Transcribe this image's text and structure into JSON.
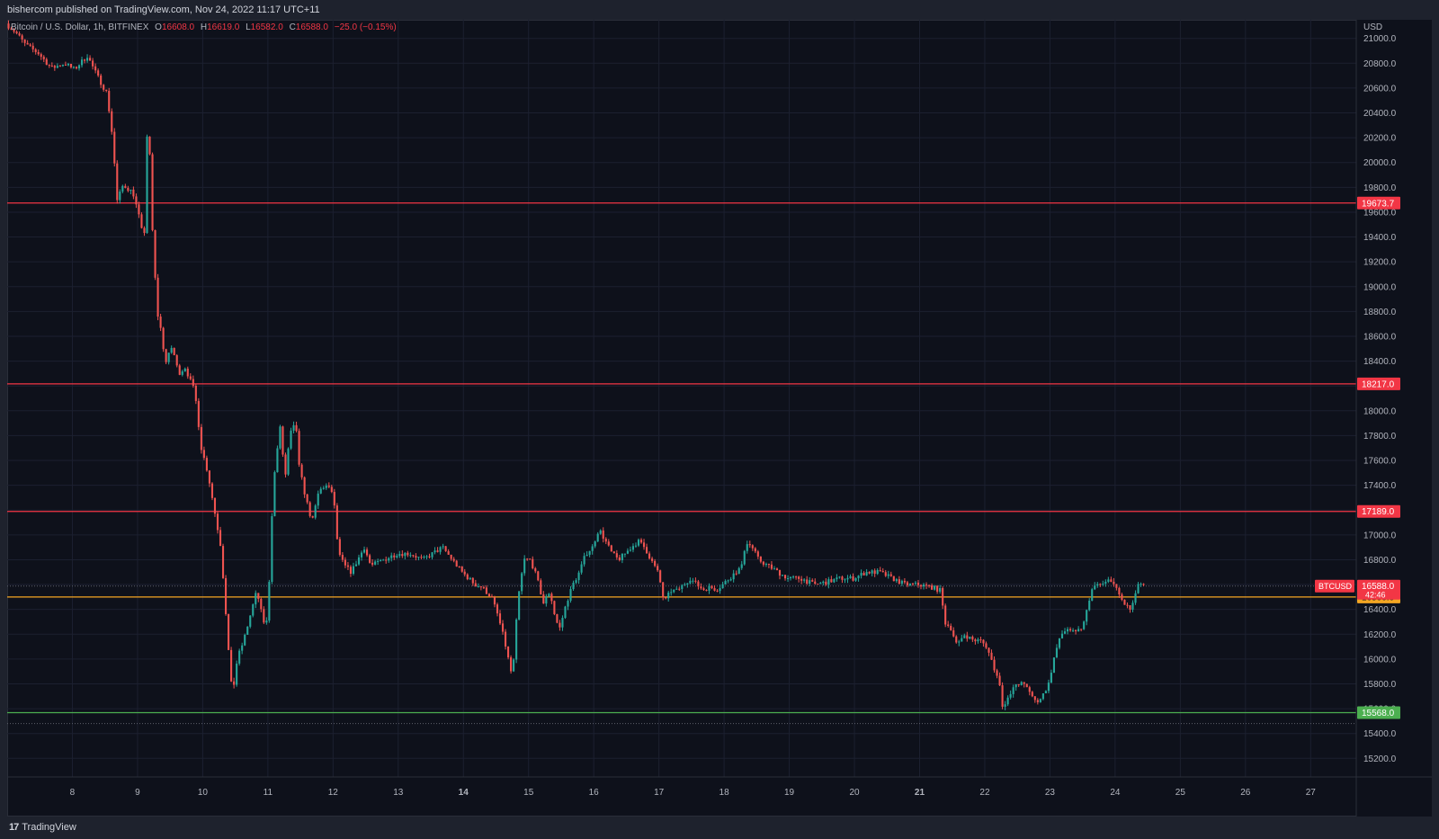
{
  "header": {
    "publisher_text": "bishercom published on TradingView.com, Nov 24, 2022 11:17 UTC+11"
  },
  "legend": {
    "symbol": "Bitcoin / U.S. Dollar, 1h, BITFINEX",
    "open_label": "O",
    "open": "16608.0",
    "high_label": "H",
    "high": "16619.0",
    "low_label": "L",
    "low": "16582.0",
    "close_label": "C",
    "close": "16588.0",
    "change": "−25.0 (−0.15%)"
  },
  "footer": {
    "brand": "TradingView",
    "logo_glyph": "17"
  },
  "colors": {
    "background": "#0e111b",
    "up": "#26a69a",
    "down": "#ef5350",
    "resistance": "#f23645",
    "support_yellow": "#f5a623",
    "support_green": "#4caf50"
  },
  "chart_data": {
    "type": "candlestick",
    "currency_label": "USD",
    "y_ticks": [
      "21000.0",
      "20800.0",
      "20600.0",
      "20400.0",
      "20200.0",
      "20000.0",
      "19800.0",
      "19600.0",
      "19400.0",
      "19200.0",
      "19000.0",
      "18800.0",
      "18600.0",
      "18400.0",
      "18200.0",
      "18000.0",
      "17800.0",
      "17600.0",
      "17400.0",
      "17200.0",
      "17000.0",
      "16800.0",
      "16600.0",
      "16400.0",
      "16200.0",
      "16000.0",
      "15800.0",
      "15600.0",
      "15400.0",
      "15200.0"
    ],
    "ylim": [
      15050,
      21150
    ],
    "x_ticks": [
      {
        "day": 8,
        "label": "8",
        "bold": false
      },
      {
        "day": 9,
        "label": "9",
        "bold": false
      },
      {
        "day": 10,
        "label": "10",
        "bold": false
      },
      {
        "day": 11,
        "label": "11",
        "bold": false
      },
      {
        "day": 12,
        "label": "12",
        "bold": false
      },
      {
        "day": 13,
        "label": "13",
        "bold": false
      },
      {
        "day": 14,
        "label": "14",
        "bold": true
      },
      {
        "day": 15,
        "label": "15",
        "bold": false
      },
      {
        "day": 16,
        "label": "16",
        "bold": false
      },
      {
        "day": 17,
        "label": "17",
        "bold": false
      },
      {
        "day": 18,
        "label": "18",
        "bold": false
      },
      {
        "day": 19,
        "label": "19",
        "bold": false
      },
      {
        "day": 20,
        "label": "20",
        "bold": false
      },
      {
        "day": 21,
        "label": "21",
        "bold": true
      },
      {
        "day": 22,
        "label": "22",
        "bold": false
      },
      {
        "day": 23,
        "label": "23",
        "bold": false
      },
      {
        "day": 24,
        "label": "24",
        "bold": false
      },
      {
        "day": 25,
        "label": "25",
        "bold": false
      },
      {
        "day": 26,
        "label": "26",
        "bold": false
      },
      {
        "day": 27,
        "label": "27",
        "bold": false
      }
    ],
    "xlim": [
      7.0,
      27.7
    ],
    "horizontal_levels": [
      {
        "price": 19673.7,
        "label": "19673.7",
        "color": "#f23645"
      },
      {
        "price": 18217.0,
        "label": "18217.0",
        "color": "#f23645"
      },
      {
        "price": 17189.0,
        "label": "17189.0",
        "color": "#f23645"
      },
      {
        "price": 16500.0,
        "label": "16500.0",
        "color": "#f5a623"
      },
      {
        "price": 15568.0,
        "label": "15568.0",
        "color": "#4caf50"
      }
    ],
    "dotted_levels": [
      16588.0,
      15480.0
    ],
    "current_price": {
      "symbol": "BTCUSD",
      "price": "16588.0",
      "countdown": "42:46",
      "value": 16588.0
    },
    "price_path": [
      [
        7.0,
        21120
      ],
      [
        7.15,
        21050
      ],
      [
        7.3,
        20950
      ],
      [
        7.5,
        20880
      ],
      [
        7.7,
        20760
      ],
      [
        7.9,
        20800
      ],
      [
        8.05,
        20750
      ],
      [
        8.25,
        20860
      ],
      [
        8.4,
        20700
      ],
      [
        8.55,
        20560
      ],
      [
        8.65,
        20150
      ],
      [
        8.7,
        19680
      ],
      [
        8.8,
        19820
      ],
      [
        8.95,
        19760
      ],
      [
        9.05,
        19550
      ],
      [
        9.12,
        19350
      ],
      [
        9.18,
        20460
      ],
      [
        9.25,
        19450
      ],
      [
        9.32,
        18800
      ],
      [
        9.38,
        18650
      ],
      [
        9.45,
        18380
      ],
      [
        9.55,
        18520
      ],
      [
        9.65,
        18300
      ],
      [
        9.75,
        18350
      ],
      [
        9.9,
        18150
      ],
      [
        10.0,
        17700
      ],
      [
        10.1,
        17500
      ],
      [
        10.2,
        17200
      ],
      [
        10.3,
        16900
      ],
      [
        10.4,
        16200
      ],
      [
        10.45,
        15800
      ],
      [
        10.5,
        15800
      ],
      [
        10.55,
        16000
      ],
      [
        10.65,
        16150
      ],
      [
        10.75,
        16350
      ],
      [
        10.85,
        16550
      ],
      [
        10.95,
        16300
      ],
      [
        11.0,
        16300
      ],
      [
        11.05,
        16700
      ],
      [
        11.1,
        17400
      ],
      [
        11.15,
        17600
      ],
      [
        11.2,
        17900
      ],
      [
        11.25,
        17650
      ],
      [
        11.3,
        17450
      ],
      [
        11.35,
        17800
      ],
      [
        11.45,
        17900
      ],
      [
        11.5,
        17550
      ],
      [
        11.6,
        17300
      ],
      [
        11.7,
        17100
      ],
      [
        11.8,
        17350
      ],
      [
        11.9,
        17400
      ],
      [
        12.0,
        17350
      ],
      [
        12.05,
        17200
      ],
      [
        12.1,
        16850
      ],
      [
        12.2,
        16750
      ],
      [
        12.3,
        16700
      ],
      [
        12.4,
        16800
      ],
      [
        12.5,
        16900
      ],
      [
        12.6,
        16750
      ],
      [
        12.8,
        16800
      ],
      [
        13.0,
        16850
      ],
      [
        13.2,
        16850
      ],
      [
        13.4,
        16800
      ],
      [
        13.55,
        16850
      ],
      [
        13.7,
        16900
      ],
      [
        13.85,
        16800
      ],
      [
        14.0,
        16700
      ],
      [
        14.1,
        16650
      ],
      [
        14.2,
        16600
      ],
      [
        14.3,
        16580
      ],
      [
        14.45,
        16500
      ],
      [
        14.55,
        16350
      ],
      [
        14.65,
        16150
      ],
      [
        14.75,
        15900
      ],
      [
        14.8,
        16000
      ],
      [
        14.85,
        16450
      ],
      [
        14.95,
        16800
      ],
      [
        15.05,
        16800
      ],
      [
        15.15,
        16650
      ],
      [
        15.25,
        16450
      ],
      [
        15.3,
        16500
      ],
      [
        15.35,
        16550
      ],
      [
        15.4,
        16400
      ],
      [
        15.45,
        16300
      ],
      [
        15.5,
        16250
      ],
      [
        15.6,
        16450
      ],
      [
        15.7,
        16600
      ],
      [
        15.8,
        16700
      ],
      [
        15.9,
        16850
      ],
      [
        16.0,
        16900
      ],
      [
        16.1,
        17050
      ],
      [
        16.2,
        16950
      ],
      [
        16.3,
        16850
      ],
      [
        16.4,
        16800
      ],
      [
        16.5,
        16850
      ],
      [
        16.6,
        16900
      ],
      [
        16.7,
        16950
      ],
      [
        16.8,
        16900
      ],
      [
        16.9,
        16800
      ],
      [
        17.0,
        16700
      ],
      [
        17.05,
        16600
      ],
      [
        17.1,
        16450
      ],
      [
        17.2,
        16550
      ],
      [
        17.3,
        16550
      ],
      [
        17.4,
        16600
      ],
      [
        17.5,
        16650
      ],
      [
        17.6,
        16600
      ],
      [
        17.7,
        16560
      ],
      [
        17.8,
        16580
      ],
      [
        17.9,
        16560
      ],
      [
        18.0,
        16600
      ],
      [
        18.1,
        16650
      ],
      [
        18.2,
        16700
      ],
      [
        18.3,
        16750
      ],
      [
        18.35,
        16950
      ],
      [
        18.45,
        16900
      ],
      [
        18.55,
        16800
      ],
      [
        18.7,
        16750
      ],
      [
        18.85,
        16700
      ],
      [
        19.0,
        16650
      ],
      [
        19.2,
        16650
      ],
      [
        19.4,
        16600
      ],
      [
        19.6,
        16620
      ],
      [
        19.8,
        16650
      ],
      [
        20.0,
        16650
      ],
      [
        20.2,
        16700
      ],
      [
        20.4,
        16700
      ],
      [
        20.6,
        16650
      ],
      [
        20.8,
        16600
      ],
      [
        21.0,
        16600
      ],
      [
        21.2,
        16580
      ],
      [
        21.35,
        16550
      ],
      [
        21.4,
        16300
      ],
      [
        21.5,
        16250
      ],
      [
        21.6,
        16100
      ],
      [
        21.7,
        16200
      ],
      [
        21.85,
        16150
      ],
      [
        21.95,
        16150
      ],
      [
        22.05,
        16100
      ],
      [
        22.15,
        15950
      ],
      [
        22.25,
        15800
      ],
      [
        22.3,
        15600
      ],
      [
        22.4,
        15700
      ],
      [
        22.5,
        15800
      ],
      [
        22.6,
        15800
      ],
      [
        22.7,
        15750
      ],
      [
        22.8,
        15650
      ],
      [
        22.9,
        15700
      ],
      [
        23.0,
        15800
      ],
      [
        23.1,
        16050
      ],
      [
        23.2,
        16200
      ],
      [
        23.3,
        16250
      ],
      [
        23.4,
        16200
      ],
      [
        23.5,
        16250
      ],
      [
        23.55,
        16300
      ],
      [
        23.65,
        16550
      ],
      [
        23.75,
        16600
      ],
      [
        23.85,
        16600
      ],
      [
        23.95,
        16650
      ],
      [
        24.05,
        16550
      ],
      [
        24.15,
        16450
      ],
      [
        24.25,
        16400
      ],
      [
        24.32,
        16480
      ],
      [
        24.38,
        16620
      ],
      [
        24.45,
        16588
      ]
    ]
  }
}
